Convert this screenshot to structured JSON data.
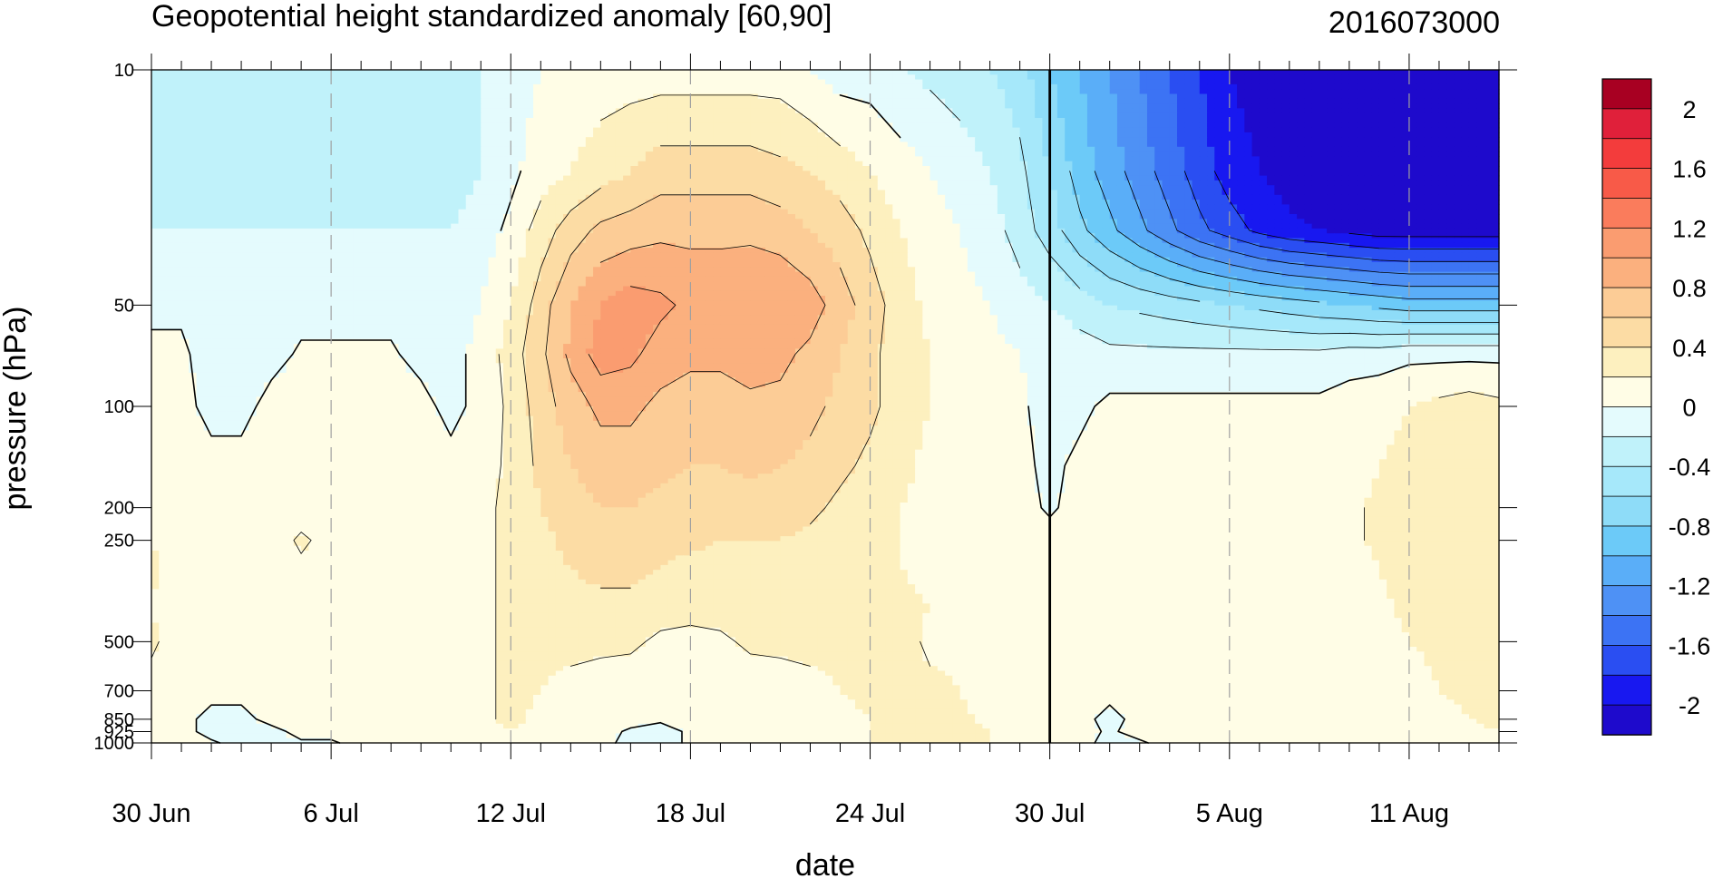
{
  "chart_data": {
    "type": "heatmap",
    "title": "Geopotential height standardized anomaly [60,90]",
    "date_stamp": "2016073000",
    "xlabel": "date",
    "ylabel": "pressure (hPa)",
    "x_range_days": [
      0,
      45
    ],
    "x_ticks": [
      {
        "day": 0,
        "label": "30 Jun"
      },
      {
        "day": 6,
        "label": "6 Jul"
      },
      {
        "day": 12,
        "label": "12 Jul"
      },
      {
        "day": 18,
        "label": "18 Jul"
      },
      {
        "day": 24,
        "label": "24 Jul"
      },
      {
        "day": 30,
        "label": "30 Jul"
      },
      {
        "day": 36,
        "label": "5 Aug"
      },
      {
        "day": 42,
        "label": "11 Aug"
      }
    ],
    "y_scale": "log",
    "y_range": [
      1000,
      10
    ],
    "y_ticks": [
      {
        "value": 10,
        "label": "10"
      },
      {
        "value": 50,
        "label": "50"
      },
      {
        "value": 100,
        "label": "100"
      },
      {
        "value": 200,
        "label": "200"
      },
      {
        "value": 250,
        "label": "250"
      },
      {
        "value": 500,
        "label": "500"
      },
      {
        "value": 700,
        "label": "700"
      },
      {
        "value": 850,
        "label": "850"
      },
      {
        "value": 925,
        "label": "925"
      },
      {
        "value": 1000,
        "label": "1000"
      }
    ],
    "analysis_day": 30,
    "colorbar": {
      "labels": [
        "2",
        "1.6",
        "1.2",
        "0.8",
        "0.4",
        "0",
        "-0.4",
        "-0.8",
        "-1.2",
        "-1.6",
        "-2"
      ],
      "label_values": [
        2,
        1.6,
        1.2,
        0.8,
        0.4,
        0,
        -0.4,
        -0.8,
        -1.2,
        -1.6,
        -2
      ],
      "levels": [
        -2.2,
        -2,
        -1.8,
        -1.6,
        -1.4,
        -1.2,
        -1,
        -0.8,
        -0.6,
        -0.4,
        -0.2,
        0,
        0.2,
        0.4,
        0.6,
        0.8,
        1,
        1.2,
        1.4,
        1.6,
        1.8,
        2,
        2.2
      ],
      "colors": [
        "#1e0acc",
        "#1818f0",
        "#2a4ef2",
        "#3c73f4",
        "#4e91f5",
        "#5aaef8",
        "#6ccaf8",
        "#8edcf8",
        "#a6e8fa",
        "#c0f2fa",
        "#e4fbfd",
        "#fffde6",
        "#fdf0bf",
        "#fcdca4",
        "#fccc96",
        "#fbb07e",
        "#fa9c70",
        "#fa7c5c",
        "#f85a48",
        "#f33c3c",
        "#e0203a",
        "#a80022"
      ]
    },
    "grid": {
      "days": [
        0,
        1,
        2,
        3,
        4,
        5,
        6,
        7,
        8,
        9,
        10,
        11,
        12,
        13,
        14,
        15,
        16,
        17,
        18,
        19,
        20,
        21,
        22,
        23,
        24,
        25,
        26,
        27,
        28,
        29,
        30,
        31,
        32,
        33,
        34,
        35,
        36,
        37,
        38,
        39,
        40,
        41,
        42,
        43,
        44,
        45
      ],
      "levels_hPa": [
        10,
        20,
        30,
        50,
        70,
        100,
        150,
        200,
        250,
        300,
        400,
        500,
        700,
        850,
        925,
        1000
      ],
      "values": [
        [
          -0.3,
          -0.3,
          -0.3,
          -0.3,
          -0.3,
          -0.3,
          -0.3,
          -0.3,
          -0.3,
          -0.3,
          -0.3,
          -0.2,
          -0.1,
          0,
          0.05,
          0.1,
          0.1,
          0.1,
          0.1,
          0.1,
          0.1,
          0.1,
          0,
          -0.1,
          -0.1,
          -0.2,
          -0.25,
          -0.3,
          -0.4,
          -0.5,
          -0.8,
          -1,
          -1.2,
          -1.4,
          -1.6,
          -1.8,
          -2,
          -2.1,
          -2.2,
          -2.2,
          -2.2,
          -2.2,
          -2.2,
          -2.2,
          -2.2,
          -2.2
        ],
        [
          -0.3,
          -0.3,
          -0.3,
          -0.3,
          -0.3,
          -0.3,
          -0.3,
          -0.3,
          -0.3,
          -0.3,
          -0.3,
          -0.2,
          -0.05,
          0.1,
          0.2,
          0.3,
          0.4,
          0.5,
          0.5,
          0.5,
          0.5,
          0.45,
          0.4,
          0.3,
          0.2,
          0.1,
          0,
          -0.1,
          -0.2,
          -0.35,
          -0.6,
          -0.9,
          -1.1,
          -1.3,
          -1.5,
          -1.7,
          -1.9,
          -2,
          -2.1,
          -2.2,
          -2.2,
          -2.2,
          -2.2,
          -2.2,
          -2.2,
          -2.2
        ],
        [
          -0.2,
          -0.2,
          -0.2,
          -0.2,
          -0.2,
          -0.2,
          -0.2,
          -0.2,
          -0.2,
          -0.2,
          -0.2,
          -0.1,
          0.05,
          0.3,
          0.5,
          0.65,
          0.7,
          0.75,
          0.75,
          0.75,
          0.75,
          0.7,
          0.6,
          0.5,
          0.35,
          0.2,
          0.1,
          0,
          -0.1,
          -0.3,
          -0.5,
          -0.75,
          -0.95,
          -1.15,
          -1.35,
          -1.55,
          -1.7,
          -1.85,
          -1.95,
          -2,
          -2.05,
          -2.1,
          -2.1,
          -2.1,
          -2.1,
          -2.1
        ],
        [
          -0.02,
          -0.02,
          -0.05,
          -0.05,
          -0.05,
          -0.05,
          -0.05,
          -0.05,
          -0.05,
          -0.05,
          -0.1,
          0,
          0.2,
          0.5,
          0.8,
          1.0,
          1.1,
          1.05,
          0.95,
          0.95,
          1.0,
          1.0,
          0.9,
          0.7,
          0.5,
          0.3,
          0.15,
          0.05,
          0,
          -0.1,
          -0.2,
          -0.3,
          -0.4,
          -0.45,
          -0.5,
          -0.55,
          -0.6,
          -0.65,
          -0.7,
          -0.75,
          -0.8,
          -0.85,
          -0.9,
          -0.9,
          -0.9,
          -0.9
        ],
        [
          0.02,
          0.02,
          -0.05,
          -0.05,
          -0.05,
          0.02,
          0.02,
          0.02,
          0.02,
          -0.05,
          -0.05,
          0.05,
          0.3,
          0.55,
          0.85,
          1.1,
          1.05,
          0.9,
          0.85,
          0.85,
          0.9,
          0.85,
          0.75,
          0.6,
          0.45,
          0.3,
          0.2,
          0.1,
          0.05,
          0,
          -0.05,
          -0.1,
          -0.15,
          -0.15,
          -0.15,
          -0.15,
          -0.15,
          -0.15,
          -0.15,
          -0.15,
          -0.1,
          -0.1,
          -0.05,
          -0.05,
          -0.05,
          -0.05
        ],
        [
          0.05,
          0.05,
          -0.05,
          -0.05,
          0.05,
          0.05,
          0.05,
          0.05,
          0.05,
          0.05,
          -0.05,
          0.05,
          0.25,
          0.5,
          0.7,
          0.85,
          0.85,
          0.75,
          0.7,
          0.7,
          0.75,
          0.75,
          0.65,
          0.55,
          0.45,
          0.3,
          0.2,
          0.15,
          0.05,
          0.02,
          -0.05,
          -0.05,
          0.05,
          0.05,
          0.05,
          0.05,
          0.05,
          0.05,
          0.05,
          0.05,
          0.1,
          0.15,
          0.2,
          0.25,
          0.3,
          0.25
        ],
        [
          0.05,
          0.05,
          0.05,
          0.05,
          0.05,
          0.05,
          0.05,
          0.05,
          0.05,
          0.05,
          0.05,
          0.1,
          0.25,
          0.45,
          0.6,
          0.7,
          0.7,
          0.65,
          0.6,
          0.6,
          0.65,
          0.6,
          0.55,
          0.45,
          0.35,
          0.25,
          0.15,
          0.1,
          0.05,
          0.05,
          -0.05,
          0.05,
          0.05,
          0.05,
          0.05,
          0.05,
          0.05,
          0.05,
          0.05,
          0.05,
          0.1,
          0.2,
          0.25,
          0.3,
          0.3,
          0.35
        ],
        [
          0.1,
          0.05,
          0.05,
          0.05,
          0.05,
          0.05,
          0.05,
          0.05,
          0.05,
          0.05,
          0.05,
          0.15,
          0.25,
          0.4,
          0.5,
          0.6,
          0.6,
          0.55,
          0.5,
          0.5,
          0.5,
          0.5,
          0.45,
          0.35,
          0.3,
          0.2,
          0.15,
          0.1,
          0.05,
          0.05,
          -0.02,
          0.05,
          0.05,
          0.05,
          0.05,
          0.05,
          0.05,
          0.05,
          0.05,
          0.05,
          0.15,
          0.25,
          0.3,
          0.3,
          0.3,
          0.3
        ],
        [
          0.2,
          0.05,
          0.05,
          0.05,
          0.05,
          0.25,
          0.1,
          0.05,
          0.05,
          0.05,
          0.05,
          0.15,
          0.25,
          0.35,
          0.45,
          0.5,
          0.5,
          0.45,
          0.45,
          0.4,
          0.4,
          0.4,
          0.35,
          0.3,
          0.25,
          0.2,
          0.15,
          0.1,
          0.05,
          0.05,
          0.05,
          0.05,
          0.05,
          0.05,
          0.05,
          0.05,
          0.05,
          0.05,
          0.05,
          0.05,
          0.15,
          0.25,
          0.3,
          0.3,
          0.3,
          0.3
        ],
        [
          0.25,
          0.05,
          0.05,
          0.05,
          0.05,
          0.15,
          0.05,
          0.05,
          0.05,
          0.05,
          0.05,
          0.15,
          0.25,
          0.35,
          0.4,
          0.45,
          0.45,
          0.4,
          0.35,
          0.35,
          0.35,
          0.35,
          0.3,
          0.25,
          0.25,
          0.2,
          0.15,
          0.1,
          0.05,
          0.05,
          0.05,
          0.05,
          0.05,
          0.05,
          0.05,
          0.05,
          0.05,
          0.05,
          0.05,
          0.05,
          0.1,
          0.2,
          0.3,
          0.3,
          0.3,
          0.3
        ],
        [
          0.2,
          0.05,
          0.05,
          0.05,
          0.05,
          0.05,
          0.05,
          0.05,
          0.05,
          0.05,
          0.05,
          0.15,
          0.25,
          0.3,
          0.35,
          0.35,
          0.35,
          0.3,
          0.3,
          0.3,
          0.3,
          0.3,
          0.25,
          0.25,
          0.25,
          0.25,
          0.2,
          0.15,
          0.05,
          0.05,
          0.05,
          0.05,
          0.05,
          0.05,
          0.05,
          0.05,
          0.05,
          0.05,
          0.05,
          0.05,
          0.05,
          0.15,
          0.25,
          0.3,
          0.3,
          0.3
        ],
        [
          0.25,
          0.05,
          0.05,
          0.05,
          0.05,
          0.05,
          0.05,
          0.05,
          0.05,
          0.05,
          0.05,
          0.15,
          0.25,
          0.25,
          0.25,
          0.25,
          0.25,
          0.15,
          0.1,
          0.15,
          0.25,
          0.25,
          0.25,
          0.25,
          0.25,
          0.3,
          0.15,
          0.15,
          0.05,
          0.05,
          0.05,
          0.05,
          0.05,
          0.05,
          0.05,
          0.05,
          0.05,
          0.05,
          0.05,
          0.05,
          0.05,
          0.1,
          0.2,
          0.25,
          0.3,
          0.3
        ],
        [
          0.1,
          0.05,
          0.05,
          0.05,
          0.05,
          0.05,
          0.05,
          0.05,
          0.05,
          0.05,
          0.05,
          0.15,
          0.25,
          0.2,
          0.15,
          0.1,
          0.05,
          0.05,
          0.05,
          0.05,
          0.05,
          0.1,
          0.15,
          0.2,
          0.25,
          0.3,
          0.25,
          0.2,
          0.1,
          0.05,
          0.05,
          0.05,
          0.05,
          0.05,
          0.05,
          0.05,
          0.05,
          0.05,
          0.05,
          0.05,
          0.05,
          0.05,
          0.1,
          0.2,
          0.25,
          0.25
        ],
        [
          0.05,
          0.05,
          -0.05,
          -0.05,
          0.05,
          0.05,
          0.05,
          0.05,
          0.05,
          0.05,
          0.05,
          0.15,
          0.25,
          0.15,
          0.1,
          0.05,
          0.05,
          0.02,
          0.05,
          0.05,
          0.05,
          0.05,
          0.1,
          0.15,
          0.2,
          0.25,
          0.25,
          0.25,
          0.15,
          0.05,
          0.05,
          0.05,
          -0.05,
          0.05,
          0.05,
          0.05,
          0.05,
          0.05,
          0.05,
          0.05,
          0.05,
          0.05,
          0.05,
          0.1,
          0.2,
          0.25
        ],
        [
          0.05,
          0.05,
          -0.05,
          -0.05,
          -0.05,
          0.05,
          0.05,
          0.05,
          0.05,
          0.05,
          0.05,
          0.15,
          0.2,
          0.15,
          0.05,
          0.05,
          -0.02,
          -0.05,
          0.02,
          0.05,
          0.05,
          0.05,
          0.1,
          0.15,
          0.2,
          0.25,
          0.25,
          0.25,
          0.2,
          0.05,
          0.05,
          0.05,
          -0.02,
          0.05,
          0.05,
          0.05,
          0.05,
          0.05,
          0.05,
          0.05,
          0.05,
          0.05,
          0.05,
          0.1,
          0.15,
          0.2
        ],
        [
          0.05,
          0.05,
          0.02,
          -0.05,
          -0.02,
          -0.02,
          -0.02,
          0.05,
          0.05,
          0.05,
          0.05,
          0.15,
          0.2,
          0.15,
          0.05,
          0.05,
          -0.05,
          -0.05,
          0.02,
          0.05,
          0.05,
          0.05,
          0.1,
          0.15,
          0.2,
          0.25,
          0.25,
          0.25,
          0.2,
          0.05,
          0.05,
          0.05,
          -0.05,
          -0.02,
          0.05,
          0.05,
          0.05,
          0.05,
          0.05,
          0.05,
          0.05,
          0.05,
          0.05,
          0.1,
          0.15,
          0.2
        ]
      ]
    }
  }
}
